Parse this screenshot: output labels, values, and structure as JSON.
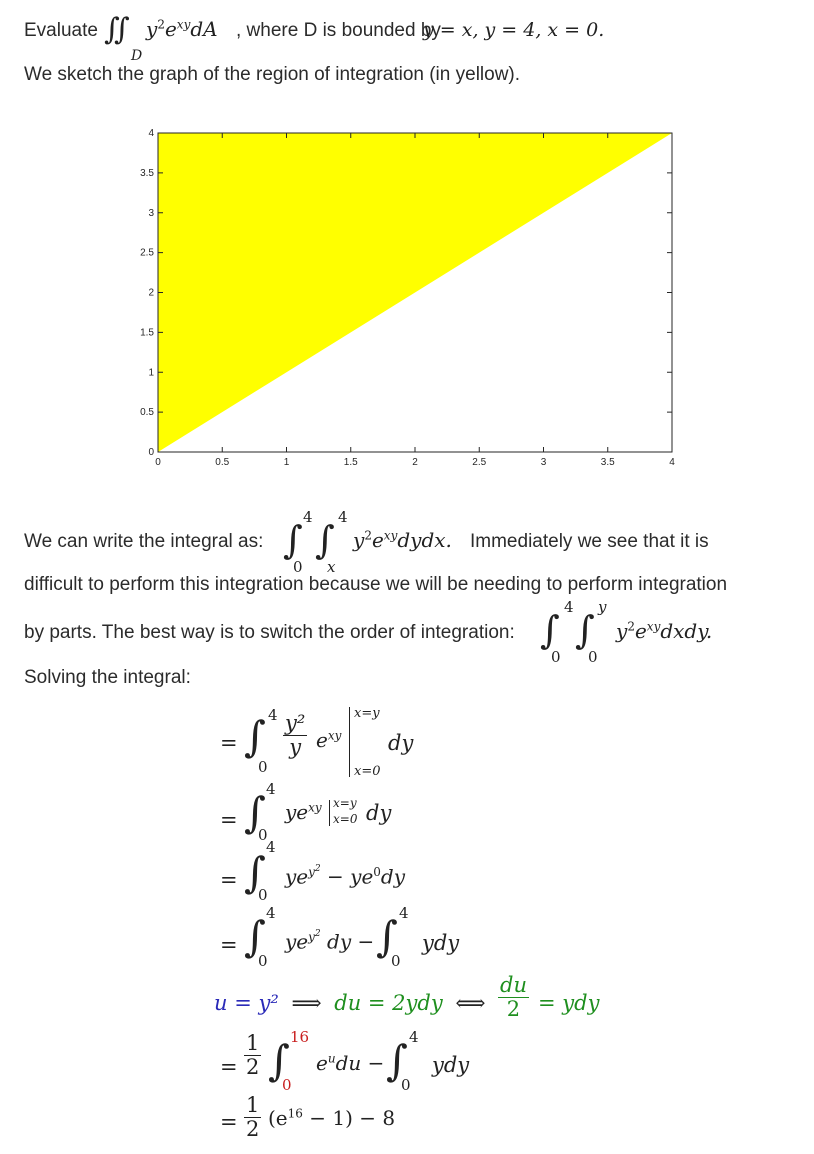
{
  "intro": {
    "evaluate_word": "Evaluate",
    "integrand": "y² e^{xy} dA",
    "where_text": ", where D is bounded by",
    "bounds": "y = x, y = 4, x = 0",
    "period": ".",
    "region_var": "D"
  },
  "sketch_sentence": "We sketch the graph of the region of integration (in yellow).",
  "chart_data": {
    "type": "area",
    "title": "",
    "xlabel": "",
    "ylabel": "",
    "xlim": [
      0,
      4
    ],
    "ylim": [
      0,
      4
    ],
    "x_ticks": [
      "0",
      "0.5",
      "1",
      "1.5",
      "2",
      "2.5",
      "3",
      "3.5",
      "4"
    ],
    "y_ticks": [
      "0",
      "0.5",
      "1",
      "1.5",
      "2",
      "2.5",
      "3",
      "3.5",
      "4"
    ],
    "region_vertices": [
      [
        0,
        0
      ],
      [
        0,
        4
      ],
      [
        4,
        4
      ]
    ],
    "fill_color": "#ffff00",
    "grid": false
  },
  "paragraph": {
    "write_text": "We can write the integral as:",
    "immediately_text": "Immediately we see that it is",
    "line2": "difficult to perform this integration because we will be needing to perform integration",
    "line3": "by parts. The best way is to switch the order of integration:",
    "solving": "Solving the integral:"
  },
  "integral1": {
    "outer_upper": "4",
    "outer_lower": "0",
    "inner_upper": "4",
    "inner_lower": "x",
    "body": "y² e^{xy} dy dx."
  },
  "integral2": {
    "outer_upper": "4",
    "outer_lower": "0",
    "inner_upper": "y",
    "inner_lower": "0",
    "body": "y² e^{xy} dx dy."
  },
  "steps": {
    "s1": {
      "upper": "4",
      "lower": "0",
      "num": "y²",
      "den": "y",
      "exp": "e^{xy}",
      "eval_upper": "x=y",
      "eval_lower": "x=0",
      "diff": "dy"
    },
    "s2": {
      "upper": "4",
      "lower": "0",
      "body": "ye^{xy}",
      "eval_upper": "x=y",
      "eval_lower": "x=0",
      "diff": "dy"
    },
    "s3": {
      "upper": "4",
      "lower": "0",
      "body": "ye^{y²} − ye⁰ dy"
    },
    "s4": {
      "upper": "4",
      "lower": "0",
      "body_a": "ye^{y²} dy −",
      "upper_b": "4",
      "lower_b": "0",
      "body_b": "ydy"
    },
    "subst": {
      "u": "u = y²",
      "arrow1": "⟹",
      "du": "du = 2ydy",
      "arrow2": "⟺",
      "frac_num": "du",
      "frac_den": "2",
      "rhs": "= ydy"
    },
    "s5": {
      "num": "1",
      "den": "2",
      "upper": "16",
      "lower": "0",
      "body_a": "eᵘ du −",
      "upper_b": "4",
      "lower_b": "0",
      "body_b": "ydy"
    },
    "s6": {
      "num": "1",
      "den": "2",
      "body": "(e¹⁶ − 1) − 8"
    }
  },
  "colors": {
    "region": "#ffff00",
    "u_sub": "#2a2ab8",
    "green": "#1f8f1f",
    "red": "#c81e1e"
  }
}
